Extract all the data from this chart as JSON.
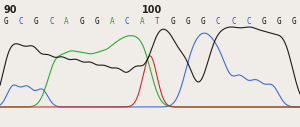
{
  "background_color": "#f0ede8",
  "num_90": "90",
  "num_100": "100",
  "sequence": [
    "G",
    "C",
    "G",
    "C",
    "A",
    "G",
    "G",
    "A",
    "C",
    "A",
    "T",
    "G",
    "G",
    "G",
    "C",
    "C",
    "C",
    "G",
    "G",
    "G"
  ],
  "seq_colors": {
    "G": "#111111",
    "C": "#2255cc",
    "A": "#22aa22",
    "T": "#cc2222"
  },
  "trace_colors": {
    "G": "#111111",
    "C": "#3366dd",
    "A": "#22aa22",
    "T": "#cc2222"
  },
  "peaks": [
    [
      "G",
      8,
      0.55,
      7
    ],
    [
      "G",
      20,
      0.7,
      8
    ],
    [
      "G",
      34,
      0.65,
      7
    ],
    [
      "G",
      48,
      0.6,
      7
    ],
    [
      "G",
      62,
      0.58,
      7
    ],
    [
      "G",
      76,
      0.55,
      7
    ],
    [
      "G",
      90,
      0.52,
      7
    ],
    [
      "G",
      104,
      0.48,
      7
    ],
    [
      "G",
      118,
      0.45,
      7
    ],
    [
      "G",
      135,
      0.5,
      8
    ],
    [
      "G",
      158,
      0.95,
      10
    ],
    [
      "G",
      172,
      0.55,
      8
    ],
    [
      "G",
      186,
      0.55,
      8
    ],
    [
      "G",
      215,
      0.78,
      10
    ],
    [
      "G",
      232,
      0.82,
      10
    ],
    [
      "G",
      250,
      0.85,
      10
    ],
    [
      "G",
      268,
      0.8,
      10
    ],
    [
      "G",
      285,
      0.75,
      9
    ],
    [
      "A",
      55,
      0.58,
      8
    ],
    [
      "A",
      70,
      0.6,
      8
    ],
    [
      "A",
      84,
      0.55,
      8
    ],
    [
      "A",
      98,
      0.52,
      8
    ],
    [
      "A",
      113,
      0.65,
      9
    ],
    [
      "A",
      128,
      0.7,
      9
    ],
    [
      "A",
      143,
      0.72,
      9
    ],
    [
      "T",
      150,
      0.75,
      7
    ],
    [
      "C",
      13,
      0.3,
      6
    ],
    [
      "C",
      27,
      0.28,
      6
    ],
    [
      "C",
      42,
      0.25,
      6
    ],
    [
      "C",
      190,
      0.48,
      8
    ],
    [
      "C",
      200,
      0.55,
      8
    ],
    [
      "C",
      210,
      0.6,
      8
    ],
    [
      "C",
      222,
      0.52,
      8
    ],
    [
      "C",
      240,
      0.4,
      7
    ],
    [
      "C",
      256,
      0.35,
      7
    ],
    [
      "C",
      272,
      0.3,
      7
    ]
  ]
}
